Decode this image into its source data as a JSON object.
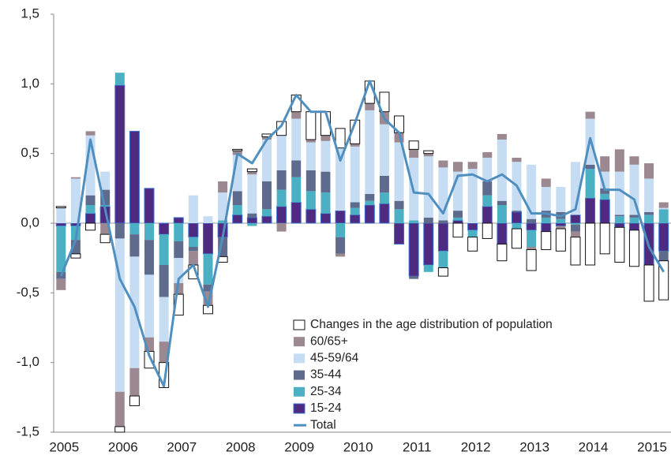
{
  "chart_data": {
    "type": "bar",
    "stacked": true,
    "categories": [
      "2005",
      null,
      null,
      null,
      "2006",
      null,
      null,
      null,
      "2007",
      null,
      null,
      null,
      "2008",
      null,
      null,
      null,
      "2009",
      null,
      null,
      null,
      "2010",
      null,
      null,
      null,
      "2011",
      null,
      null,
      null,
      "2012",
      null,
      null,
      null,
      "2013",
      null,
      null,
      null,
      "2014",
      null,
      null,
      null,
      "2015",
      null
    ],
    "series": [
      {
        "name": "Changes in the age distribution of population",
        "color": "#ffffff",
        "values": [
          0.01,
          -0.03,
          -0.05,
          -0.06,
          -0.04,
          -0.07,
          -0.12,
          -0.18,
          -0.15,
          -0.1,
          -0.06,
          -0.04,
          0.01,
          0.02,
          0.02,
          0.1,
          0.12,
          0.2,
          0.17,
          0.14,
          0.17,
          0.16,
          0.14,
          0.12,
          0.06,
          0.02,
          -0.06,
          -0.1,
          -0.1,
          -0.11,
          -0.12,
          -0.14,
          -0.15,
          -0.13,
          -0.16,
          -0.2,
          -0.3,
          -0.22,
          -0.25,
          -0.26,
          -0.26,
          -0.28
        ]
      },
      {
        "name": "60/65+",
        "color": "#9b8891",
        "values": [
          -0.08,
          0.01,
          0.03,
          -0.08,
          -0.25,
          -0.2,
          -0.1,
          -0.15,
          -0.08,
          -0.1,
          -0.1,
          0.08,
          0.03,
          0.02,
          0.02,
          -0.06,
          0.05,
          0.02,
          0.04,
          -0.02,
          0.02,
          0.05,
          0.09,
          0.07,
          0.06,
          0.02,
          0.05,
          0.07,
          0.05,
          0.04,
          0.04,
          0.03,
          -0.02,
          0.06,
          -0.02,
          -0.04,
          0.05,
          0.11,
          0.16,
          0.06,
          0.11,
          0.04
        ]
      },
      {
        "name": "45-59/64",
        "color": "#c6dcf3",
        "values": [
          0.11,
          0.32,
          0.43,
          0.13,
          -1.1,
          -0.8,
          -0.45,
          -0.32,
          -0.18,
          0.2,
          0.05,
          0.2,
          0.26,
          0.28,
          0.3,
          0.25,
          0.3,
          0.2,
          0.22,
          0.45,
          0.4,
          0.6,
          0.37,
          0.42,
          0.45,
          0.44,
          0.38,
          0.28,
          0.39,
          0.17,
          0.44,
          0.35,
          0.39,
          0.17,
          0.18,
          0.38,
          0.33,
          0.12,
          0.31,
          0.36,
          0.24,
          0.01
        ]
      },
      {
        "name": "35-44",
        "color": "#5f6b8c",
        "values": [
          -0.05,
          -0.1,
          0.07,
          0.11,
          -0.11,
          -0.16,
          -0.25,
          -0.23,
          -0.12,
          -0.03,
          -0.05,
          -0.14,
          0.1,
          0.03,
          0.2,
          0.14,
          0.12,
          0.15,
          0.15,
          -0.12,
          0.04,
          0.05,
          0.12,
          0.06,
          -0.02,
          0.04,
          0.02,
          0.05,
          0.0,
          0.1,
          0.03,
          0.01,
          0.03,
          0.05,
          0.05,
          -0.05,
          0.03,
          0.04,
          0.01,
          0.02,
          0.02,
          -0.07
        ]
      },
      {
        "name": "25-34",
        "color": "#4bb0c4",
        "values": [
          -0.33,
          -0.1,
          0.06,
          0.01,
          0.09,
          -0.08,
          -0.12,
          -0.22,
          -0.13,
          -0.07,
          -0.22,
          0.02,
          0.07,
          -0.02,
          0.05,
          0.12,
          0.18,
          0.13,
          0.15,
          -0.1,
          0.05,
          0.03,
          0.08,
          0.1,
          0.02,
          -0.05,
          -0.12,
          0.02,
          -0.05,
          0.08,
          0.13,
          -0.04,
          -0.12,
          0.04,
          0.03,
          -0.01,
          0.21,
          0.04,
          0.05,
          0.04,
          0.06,
          0.1
        ]
      },
      {
        "name": "15-24",
        "color": "#4e2a80",
        "values": [
          -0.02,
          -0.02,
          0.07,
          0.12,
          0.99,
          0.66,
          0.25,
          -0.08,
          0.04,
          -0.1,
          -0.22,
          -0.1,
          0.06,
          0.04,
          0.05,
          0.12,
          0.15,
          0.1,
          0.07,
          0.09,
          0.06,
          0.13,
          0.14,
          -0.15,
          -0.38,
          -0.3,
          -0.2,
          0.02,
          -0.05,
          0.12,
          -0.15,
          0.08,
          -0.05,
          -0.06,
          -0.02,
          0.06,
          0.18,
          0.17,
          -0.03,
          -0.05,
          -0.3,
          -0.2
        ]
      }
    ],
    "total": {
      "name": "Total",
      "color": "#4f8fc0",
      "values": [
        -0.38,
        -0.12,
        0.6,
        0.1,
        -0.4,
        -0.6,
        -0.95,
        -1.17,
        -0.4,
        -0.3,
        -0.6,
        -0.1,
        0.5,
        0.43,
        0.6,
        0.7,
        0.92,
        0.8,
        0.8,
        0.45,
        0.72,
        1.02,
        0.75,
        0.65,
        0.22,
        0.21,
        0.07,
        0.34,
        0.35,
        0.3,
        0.35,
        0.27,
        0.07,
        0.07,
        0.05,
        0.1,
        0.61,
        0.24,
        0.24,
        0.17,
        -0.17,
        -0.35
      ]
    },
    "ylim": [
      -1.5,
      1.5
    ],
    "yticks": [
      {
        "value": -1.5,
        "label": "-1,5"
      },
      {
        "value": -1.0,
        "label": "-1,0"
      },
      {
        "value": -0.5,
        "label": "-0,5"
      },
      {
        "value": 0,
        "label": "0,0"
      },
      {
        "value": 0.5,
        "label": "0,5"
      },
      {
        "value": 1.0,
        "label": "1,0"
      },
      {
        "value": 1.5,
        "label": "1,5"
      }
    ],
    "grid": false,
    "legend": "bottom"
  }
}
